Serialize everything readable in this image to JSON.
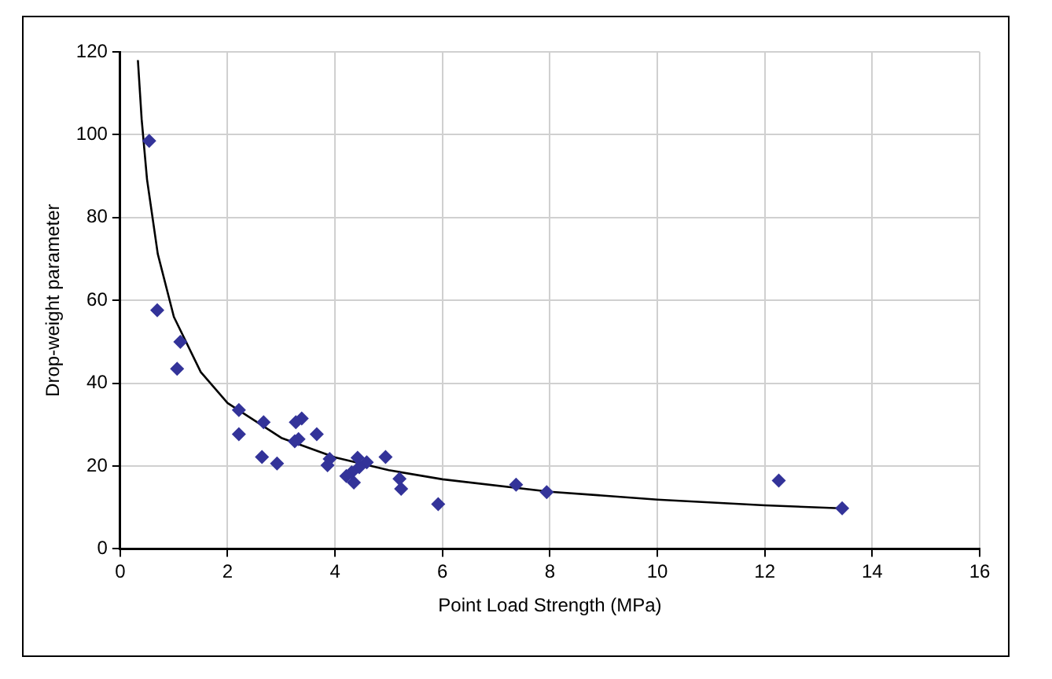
{
  "chart_data": {
    "type": "scatter",
    "xlabel": "Point Load Strength (MPa)",
    "ylabel": "Drop-weight parameter",
    "xlim": [
      0,
      16
    ],
    "xticks": [
      0,
      2,
      4,
      6,
      8,
      10,
      12,
      14,
      16
    ],
    "ylim": [
      0,
      120
    ],
    "yticks": [
      0,
      20,
      40,
      60,
      80,
      100,
      120
    ],
    "grid": true,
    "legend": false,
    "marker": "diamond",
    "series": [
      {
        "color": "#333399",
        "x": [
          0.54,
          0.69,
          1.12,
          1.06,
          2.21,
          2.21,
          2.67,
          2.64,
          2.92,
          3.27,
          3.38,
          3.25,
          3.32,
          3.66,
          3.86,
          3.9,
          4.21,
          4.31,
          4.35,
          4.42,
          4.45,
          4.59,
          4.94,
          5.2,
          5.23,
          5.92,
          7.37,
          7.94,
          12.26,
          13.44
        ],
        "values": [
          98.5,
          57.6,
          50,
          43.5,
          33.5,
          27.7,
          30.6,
          22.2,
          20.6,
          30.6,
          31.5,
          26,
          26.5,
          27.7,
          20.2,
          21.7,
          17.6,
          18.5,
          16,
          22,
          19.7,
          20.9,
          22.2,
          16.9,
          14.5,
          10.8,
          15.5,
          13.7,
          16.5,
          9.8
        ]
      },
      {
        "type": "line",
        "color": "#000000",
        "marker": "none",
        "line_style": "solid",
        "x": [
          0.33,
          0.4,
          0.5,
          0.7,
          1,
          1.5,
          2,
          3,
          4,
          5,
          6,
          8,
          10,
          12,
          13.4
        ],
        "values": [
          118,
          103.7,
          89.2,
          71.2,
          56,
          42.7,
          35.2,
          26.8,
          22.1,
          19,
          16.8,
          13.8,
          11.9,
          10.5,
          9.8
        ]
      }
    ]
  }
}
